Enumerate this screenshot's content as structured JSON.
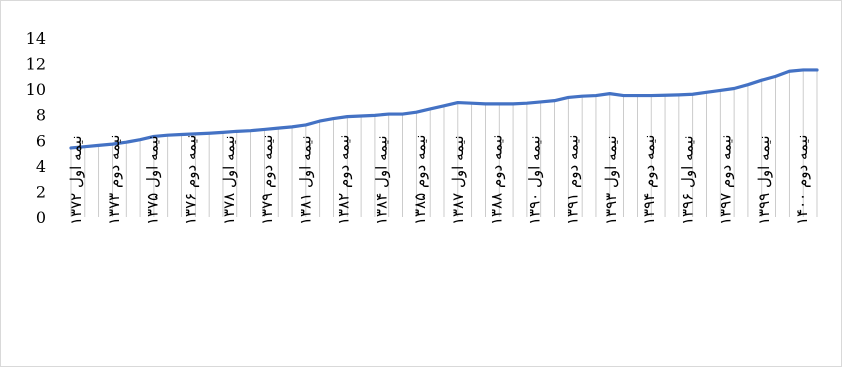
{
  "chart_data": {
    "type": "area",
    "title": "",
    "xlabel": "",
    "ylabel": "",
    "ylim": [
      0,
      14
    ],
    "yticks": [
      0,
      2,
      4,
      6,
      8,
      10,
      12,
      14
    ],
    "grid": false,
    "legend": "none",
    "colors": {
      "line": "#4472c4",
      "drop_lines": "#bfbfbf",
      "text": "#000000"
    },
    "visible_tick_labels": [
      "نیمه اول ۱۳۷۲",
      "نیمه دوم ۱۳۷۳",
      "نیمه اول ۱۳۷۵",
      "نیمه دوم ۱۳۷۶",
      "نیمه اول ۱۳۷۸",
      "نیمه دوم ۱۳۷۹",
      "نیمه اول ۱۳۸۱",
      "نیمه دوم ۱۳۸۲",
      "نیمه اول ۱۳۸۴",
      "نیمه دوم ۱۳۸۵",
      "نیمه اول ۱۳۸۷",
      "نیمه دوم ۱۳۸۸",
      "نیمه اول ۱۳۹۰",
      "نیمه دوم ۱۳۹۱",
      "نیمه اول ۱۳۹۳",
      "نیمه دوم ۱۳۹۴",
      "نیمه اول ۱۳۹۶",
      "نیمه دوم ۱۳۹۷",
      "نیمه اول ۱۳۹۹",
      "نیمه دوم ۱۴۰۰"
    ],
    "series": [
      {
        "values": [
          5.4,
          5.5,
          5.6,
          5.7,
          5.85,
          6.05,
          6.3,
          6.4,
          6.45,
          6.5,
          6.55,
          6.62,
          6.7,
          6.75,
          6.85,
          6.95,
          7.05,
          7.2,
          7.5,
          7.7,
          7.85,
          7.9,
          7.95,
          8.05,
          8.05,
          8.2,
          8.45,
          8.7,
          8.95,
          8.9,
          8.85,
          8.85,
          8.85,
          8.9,
          9.0,
          9.1,
          9.35,
          9.45,
          9.5,
          9.65,
          9.5,
          9.5,
          9.5,
          9.52,
          9.55,
          9.6,
          9.75,
          9.9,
          10.05,
          10.35,
          10.7,
          11.0,
          11.4,
          11.5,
          11.5
        ]
      }
    ]
  }
}
